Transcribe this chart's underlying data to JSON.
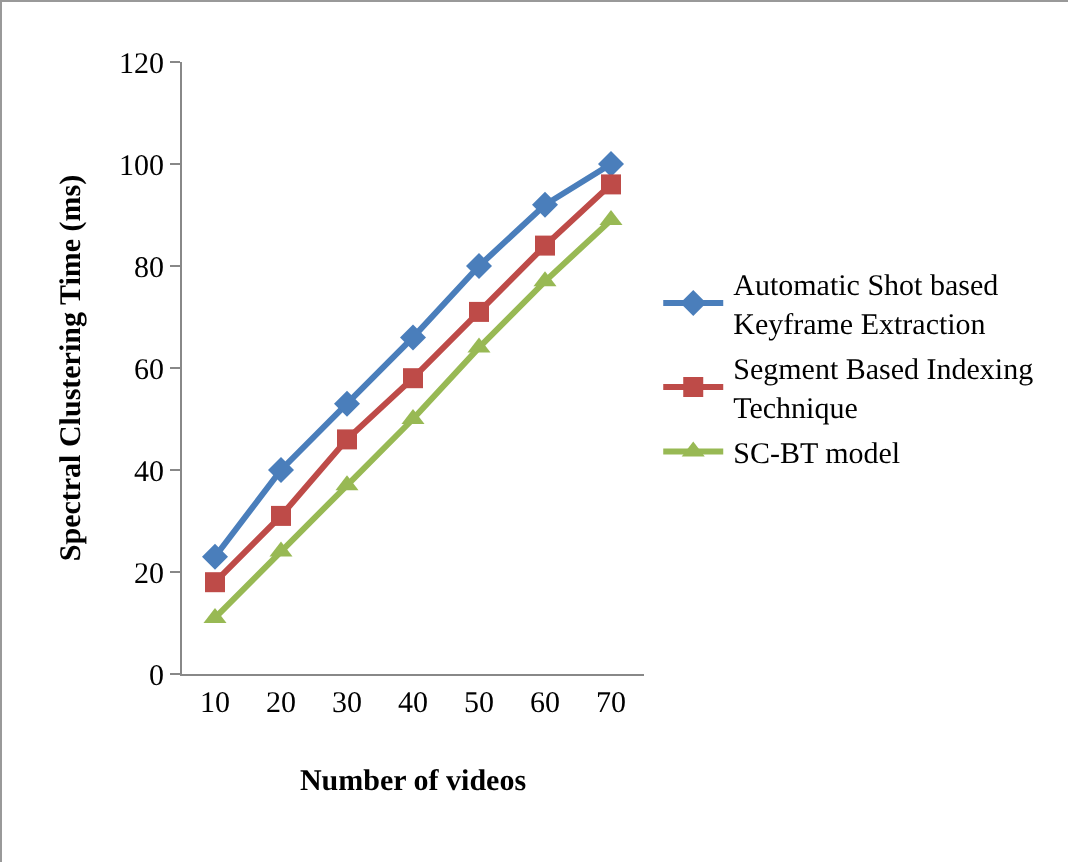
{
  "chart_data": {
    "type": "line",
    "xlabel": "Number of videos",
    "ylabel": "Spectral Clustering Time (ms)",
    "categories": [
      "10",
      "20",
      "30",
      "40",
      "50",
      "60",
      "70"
    ],
    "series": [
      {
        "name": "Automatic Shot based Keyframe Extraction",
        "color": "#4a7ebb",
        "marker": "diamond",
        "values": [
          23,
          40,
          53,
          66,
          80,
          92,
          100
        ]
      },
      {
        "name": "Segment Based Indexing Technique",
        "color": "#be4b48",
        "marker": "square",
        "values": [
          18,
          31,
          46,
          58,
          71,
          84,
          96
        ]
      },
      {
        "name": "SC-BT model",
        "color": "#98b954",
        "marker": "triangle",
        "values": [
          11,
          24,
          37,
          50,
          64,
          77,
          89
        ]
      }
    ],
    "ylim": [
      0,
      120
    ],
    "yticks": [
      0,
      20,
      40,
      60,
      80,
      100,
      120
    ],
    "grid": false,
    "legend": "right"
  }
}
